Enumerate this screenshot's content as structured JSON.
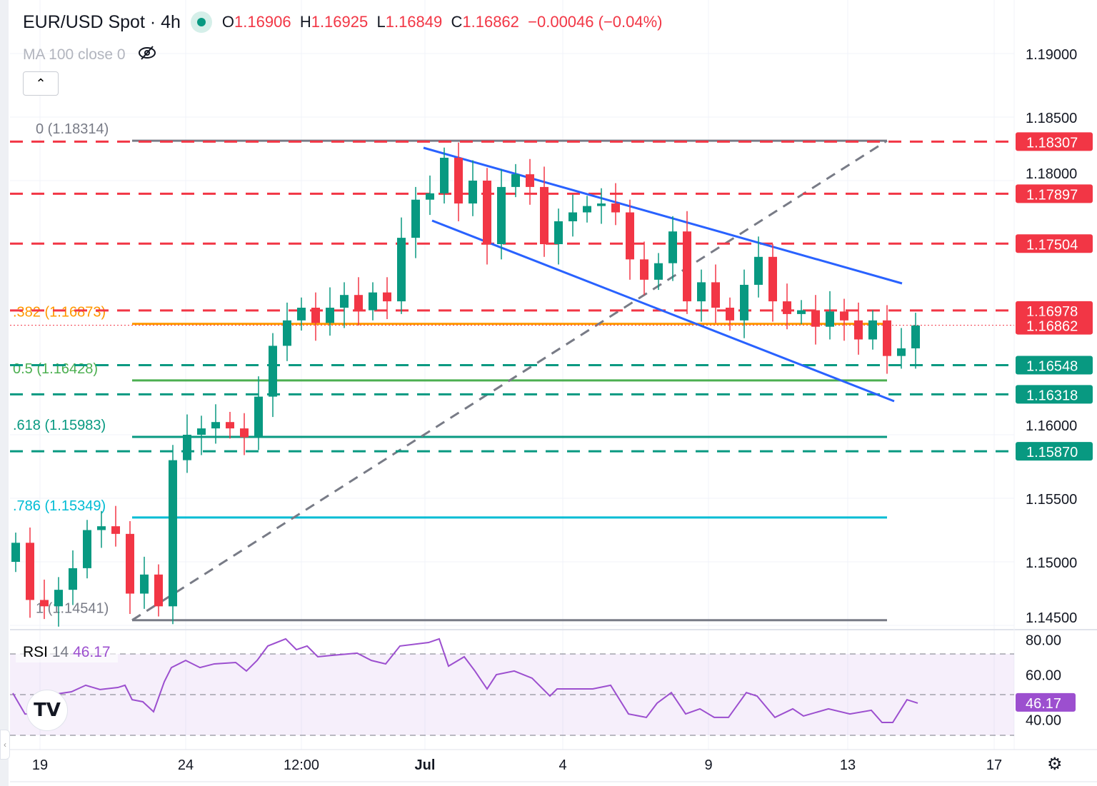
{
  "header": {
    "symbol": "EUR/USD Spot · 4h",
    "o_label": "O",
    "o": "1.16906",
    "h_label": "H",
    "h": "1.16925",
    "l_label": "L",
    "l": "1.16849",
    "c_label": "C",
    "c": "1.16862",
    "change": "−0.00046 (−0.04%)"
  },
  "indicator": {
    "ma_label": "MA 100 close 0",
    "collapse_icon": "chevron-up-icon",
    "visibility_icon": "eye-off-icon"
  },
  "rsi": {
    "name": "RSI",
    "period": "14",
    "value": "46.17",
    "tag": "46.17"
  },
  "colors": {
    "up": "#089981",
    "down": "#f23645",
    "channel": "#2962ff",
    "rsi": "#9c4fcf",
    "fib_orange": "#ff9800",
    "fib_green": "#4caf50",
    "fib_teal": "#089981",
    "fib_cyan": "#00bcd4",
    "fib_gray": "#787b86"
  },
  "chart_data": {
    "type": "candlestick",
    "title": "EUR/USD Spot · 4h",
    "ylim": [
      1.1445,
      1.1925
    ],
    "y_ticks": [
      "1.19000",
      "1.18500",
      "1.18000",
      "1.16000",
      "1.15500",
      "1.15000",
      "1.14500"
    ],
    "y_tick_values": [
      1.19,
      1.185,
      1.18,
      1.16,
      1.155,
      1.15,
      1.145
    ],
    "x_ticks": [
      {
        "label": "19",
        "i": 0
      },
      {
        "label": "24",
        "i": 12
      },
      {
        "label": "12:00",
        "i": 20
      },
      {
        "label": "Jul",
        "i": 29,
        "bold": true
      },
      {
        "label": "4",
        "i": 38
      },
      {
        "label": "9",
        "i": 49
      },
      {
        "label": "13",
        "i": 58
      },
      {
        "label": "17",
        "i": 68
      }
    ],
    "first_open": 1.15,
    "closes": [
      1.1515,
      1.147,
      1.1465,
      1.1478,
      1.1495,
      1.1525,
      1.1528,
      1.1522,
      1.1475,
      1.149,
      1.1465,
      1.158,
      1.16,
      1.1605,
      1.161,
      1.1605,
      1.1598,
      1.163,
      1.167,
      1.169,
      1.17,
      1.1688,
      1.17,
      1.171,
      1.1698,
      1.1712,
      1.1705,
      1.1755,
      1.1785,
      1.179,
      1.1818,
      1.1782,
      1.18,
      1.175,
      1.1795,
      1.1805,
      1.1795,
      1.175,
      1.1768,
      1.1775,
      1.178,
      1.1782,
      1.1775,
      1.1738,
      1.1722,
      1.1735,
      1.176,
      1.1705,
      1.172,
      1.17,
      1.169,
      1.1718,
      1.174,
      1.1705,
      1.1695,
      1.1698,
      1.1685,
      1.1697,
      1.169,
      1.1675,
      1.169,
      1.1662,
      1.1668,
      1.1686
    ],
    "levels": [
      {
        "price": 1.18307,
        "label": "1.18307",
        "kind": "resistance"
      },
      {
        "price": 1.17897,
        "label": "1.17897",
        "kind": "resistance"
      },
      {
        "price": 1.17504,
        "label": "1.17504",
        "kind": "resistance"
      },
      {
        "price": 1.16978,
        "label": "1.16978",
        "kind": "resistance"
      },
      {
        "price": 1.16548,
        "label": "1.16548",
        "kind": "support"
      },
      {
        "price": 1.16318,
        "label": "1.16318",
        "kind": "support"
      },
      {
        "price": 1.1587,
        "label": "1.15870",
        "kind": "support"
      }
    ],
    "last_price": {
      "price": 1.16862,
      "label": "1.16862"
    },
    "fibonacci": [
      {
        "price": 1.18314,
        "label": "0 (1.18314)",
        "color": "#787b86"
      },
      {
        "price": 1.16873,
        "label": ".382 (1.16873)",
        "color": "#ff9800"
      },
      {
        "price": 1.16428,
        "label": "0.5 (1.16428)",
        "color": "#4caf50"
      },
      {
        "price": 1.15983,
        "label": ".618 (1.15983)",
        "color": "#089981"
      },
      {
        "price": 1.15349,
        "label": ".786 (1.15349)",
        "color": "#00bcd4"
      },
      {
        "price": 1.14541,
        "label": "1 (1.14541)",
        "color": "#787b86"
      }
    ],
    "rsi_series": {
      "ylim": [
        20,
        80
      ],
      "ticks": [
        "80.00",
        "60.00",
        "40.00"
      ],
      "tick_values": [
        80,
        60,
        40
      ],
      "bands": [
        70,
        50,
        30
      ],
      "x": [
        18,
        35,
        50,
        60,
        100,
        120,
        140,
        165,
        175,
        185,
        200,
        215,
        230,
        240,
        260,
        280,
        300,
        330,
        345,
        360,
        375,
        400,
        415,
        430,
        445,
        465,
        500,
        520,
        540,
        560,
        600,
        615,
        628,
        650,
        665,
        682,
        695,
        720,
        745,
        770,
        780,
        830,
        855,
        880,
        905,
        920,
        940,
        960,
        980,
        1000,
        1020,
        1045,
        1060,
        1085,
        1110,
        1125,
        1160,
        1190,
        1220,
        1235,
        1250,
        1270,
        1285
      ],
      "values": [
        50.7,
        40.5,
        40.5,
        49.3,
        51.4,
        54.6,
        52.5,
        53.5,
        54.6,
        47.5,
        46.5,
        41.6,
        56.3,
        63.3,
        66.8,
        63.3,
        65.1,
        65.8,
        61.6,
        66.8,
        73.9,
        77.4,
        72.1,
        73.9,
        68.6,
        69.3,
        70.4,
        66.8,
        65.1,
        73.9,
        75.6,
        77.4,
        64,
        68.6,
        61.6,
        52.8,
        59.8,
        61.6,
        58.1,
        49.3,
        52.8,
        52.8,
        54.6,
        40.5,
        38.8,
        45.8,
        51,
        40.5,
        43,
        38.8,
        38.8,
        51,
        49.3,
        38.8,
        43,
        39.5,
        43,
        40.5,
        42.3,
        36.3,
        36.3,
        47.5,
        45.8
      ]
    }
  }
}
